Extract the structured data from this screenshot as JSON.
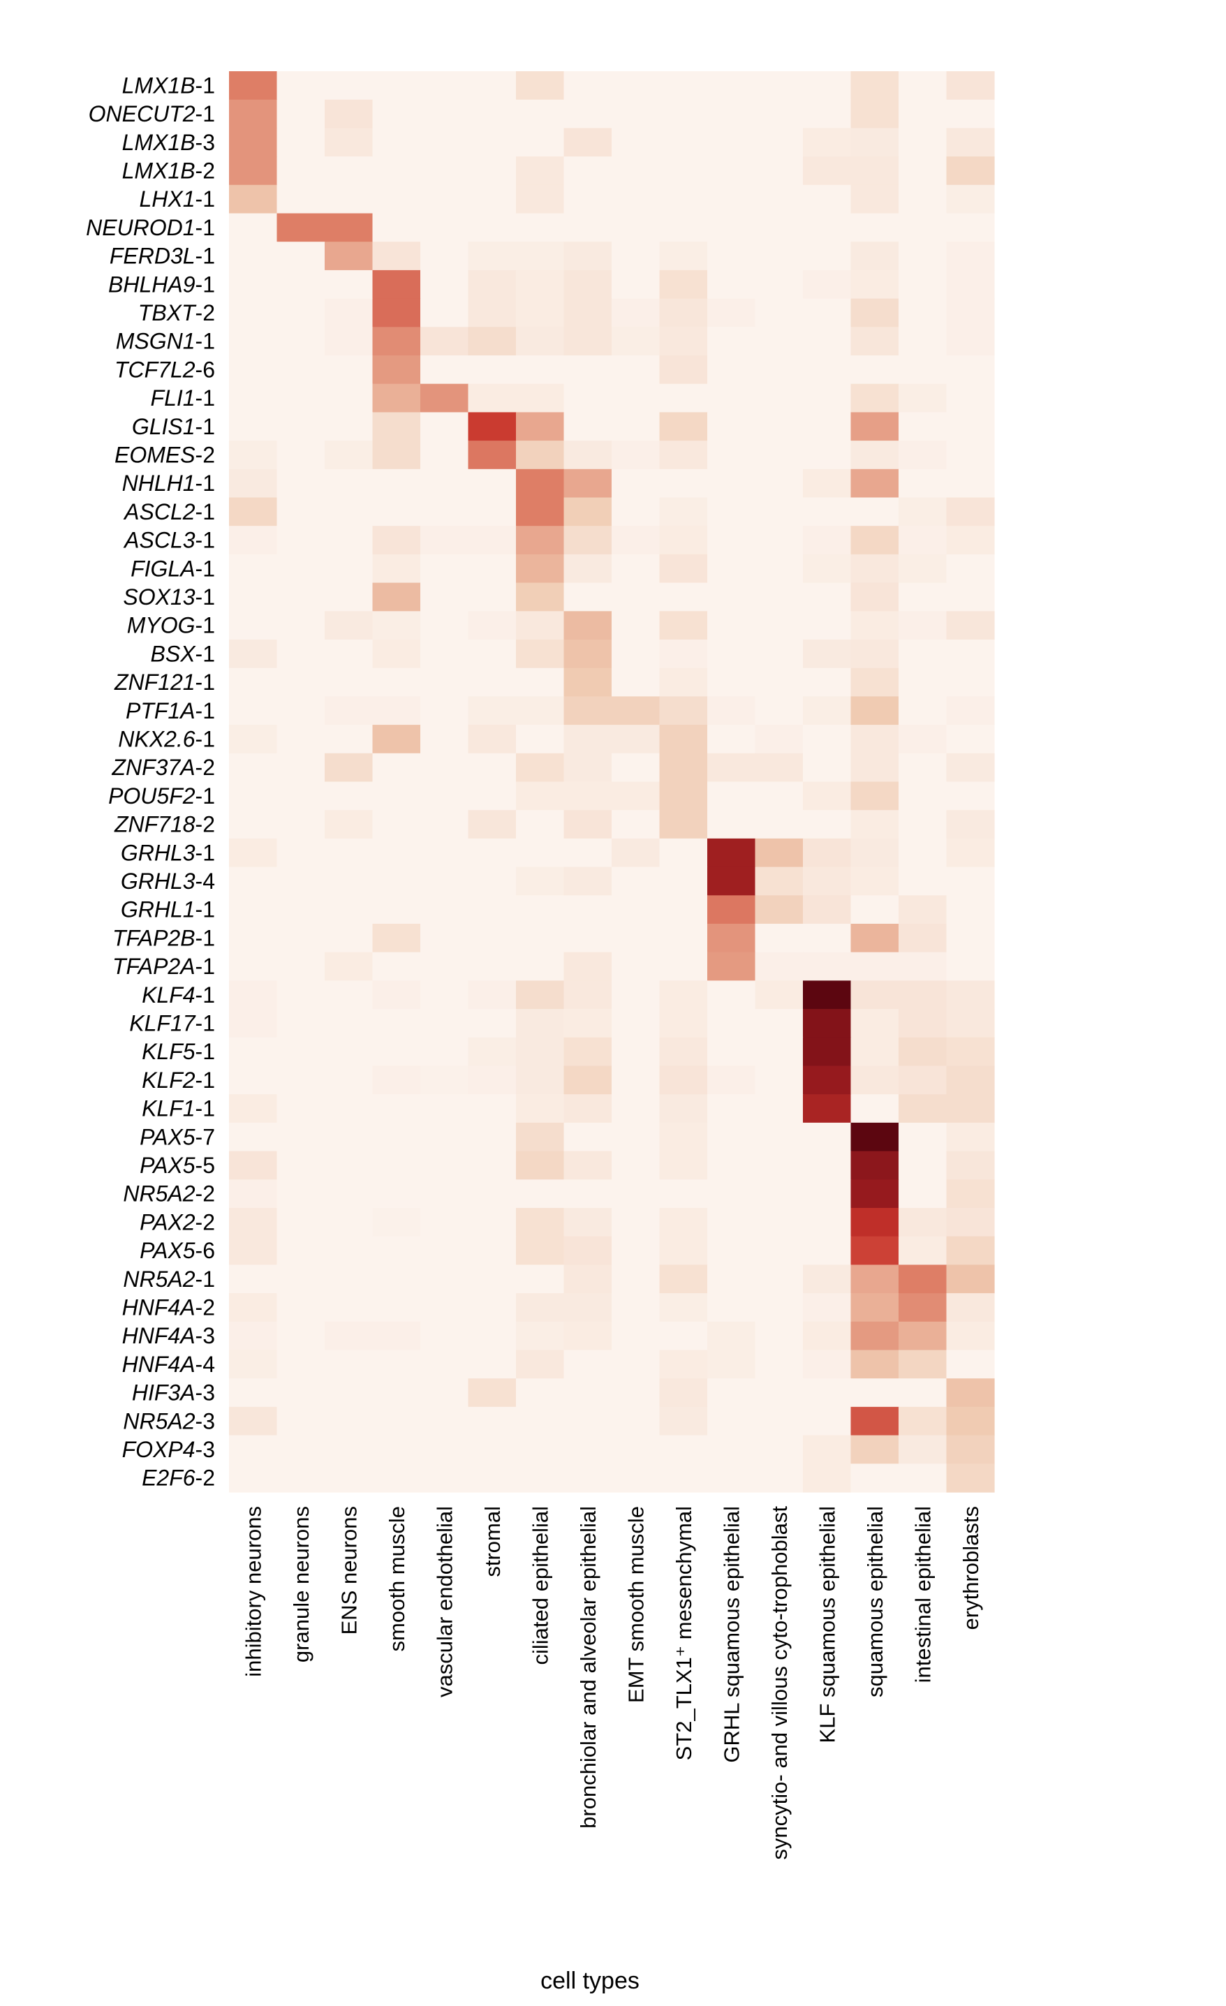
{
  "chart_data": {
    "type": "heatmap",
    "xlabel": "cell types",
    "ylabel": "",
    "columns": [
      "inhibitory neurons",
      "granule neurons",
      "ENS neurons",
      "smooth muscle",
      "vascular endothelial",
      "stromal",
      "ciliated epithelial",
      "bronchiolar and alveolar epithelial",
      "EMT smooth muscle",
      "ST2_TLX1⁺ mesenchymal",
      "GRHL squamous epithelial",
      "syncytio- and villous cyto-trophoblast",
      "KLF squamous epithelial",
      "squamous epithelial",
      "intestinal epithelial",
      "erythroblasts"
    ],
    "rows": [
      {
        "gene": "LMX1B",
        "suffix": "-1",
        "values": [
          0.5,
          0,
          0,
          0,
          0,
          0,
          0.1,
          0,
          0,
          0,
          0,
          0,
          0,
          0.1,
          0,
          0.08
        ]
      },
      {
        "gene": "ONECUT2",
        "suffix": "-1",
        "values": [
          0.42,
          0,
          0.08,
          0,
          0,
          0,
          0,
          0,
          0,
          0,
          0,
          0,
          0,
          0.1,
          0,
          0
        ]
      },
      {
        "gene": "LMX1B",
        "suffix": "-3",
        "values": [
          0.42,
          0,
          0.06,
          0,
          0,
          0,
          0,
          0.08,
          0,
          0,
          0,
          0,
          0.04,
          0.05,
          0,
          0.06
        ]
      },
      {
        "gene": "LMX1B",
        "suffix": "-2",
        "values": [
          0.42,
          0,
          0,
          0,
          0,
          0,
          0.06,
          0,
          0,
          0,
          0,
          0,
          0.06,
          0.06,
          0,
          0.15
        ]
      },
      {
        "gene": "LHX1",
        "suffix": "-1",
        "values": [
          0.25,
          0,
          0,
          0,
          0,
          0,
          0.06,
          0,
          0,
          0,
          0,
          0,
          0,
          0.06,
          0,
          0.03
        ]
      },
      {
        "gene": "NEUROD1",
        "suffix": "-1",
        "values": [
          0,
          0.5,
          0.5,
          0,
          0,
          0,
          0,
          0,
          0,
          0,
          0,
          0,
          0,
          0,
          0,
          0
        ]
      },
      {
        "gene": "FERD3L",
        "suffix": "-1",
        "values": [
          0,
          0,
          0.35,
          0.08,
          0,
          0.03,
          0.03,
          0.05,
          0,
          0.03,
          0,
          0,
          0,
          0.05,
          0,
          0.02
        ]
      },
      {
        "gene": "BHLHA9",
        "suffix": "-1",
        "values": [
          0,
          0,
          0,
          0.55,
          0,
          0.06,
          0.04,
          0.07,
          0,
          0.1,
          0,
          0,
          0.02,
          0.04,
          0,
          0.02
        ]
      },
      {
        "gene": "TBXT",
        "suffix": "-2",
        "values": [
          0,
          0,
          0.02,
          0.55,
          0,
          0.06,
          0.04,
          0.07,
          0.02,
          0.07,
          0.02,
          0,
          0,
          0.12,
          0,
          0.02
        ]
      },
      {
        "gene": "MSGN1",
        "suffix": "-1",
        "values": [
          0,
          0,
          0.02,
          0.45,
          0.08,
          0.12,
          0.05,
          0.07,
          0.03,
          0.06,
          0,
          0,
          0,
          0.07,
          0,
          0.02
        ]
      },
      {
        "gene": "TCF7L2",
        "suffix": "-6",
        "values": [
          0,
          0,
          0,
          0.4,
          0,
          0,
          0,
          0,
          0,
          0.08,
          0,
          0,
          0,
          0,
          0,
          0
        ]
      },
      {
        "gene": "FLI1",
        "suffix": "-1",
        "values": [
          0,
          0,
          0,
          0.32,
          0.42,
          0.04,
          0.04,
          0,
          0,
          0,
          0,
          0,
          0,
          0.1,
          0.03,
          0
        ]
      },
      {
        "gene": "GLIS1",
        "suffix": "-1",
        "values": [
          0,
          0,
          0,
          0.12,
          0,
          0.7,
          0.35,
          0,
          0,
          0.15,
          0,
          0,
          0,
          0.38,
          0,
          0
        ]
      },
      {
        "gene": "EOMES",
        "suffix": "-2",
        "values": [
          0.03,
          0,
          0.03,
          0.12,
          0,
          0.52,
          0.18,
          0.05,
          0.02,
          0.06,
          0,
          0,
          0,
          0.05,
          0.02,
          0
        ]
      },
      {
        "gene": "NHLH1",
        "suffix": "-1",
        "values": [
          0.05,
          0,
          0,
          0,
          0,
          0,
          0.5,
          0.35,
          0,
          0,
          0,
          0,
          0.04,
          0.35,
          0,
          0
        ]
      },
      {
        "gene": "ASCL2",
        "suffix": "-1",
        "values": [
          0.15,
          0,
          0,
          0,
          0,
          0,
          0.5,
          0.2,
          0,
          0.03,
          0,
          0,
          0,
          0,
          0.03,
          0.08
        ]
      },
      {
        "gene": "ASCL3",
        "suffix": "-1",
        "values": [
          0.02,
          0,
          0,
          0.08,
          0.02,
          0.02,
          0.35,
          0.12,
          0.02,
          0.04,
          0,
          0,
          0.02,
          0.15,
          0.02,
          0.04
        ]
      },
      {
        "gene": "FIGLA",
        "suffix": "-1",
        "values": [
          0,
          0,
          0,
          0.04,
          0,
          0,
          0.3,
          0.05,
          0,
          0.08,
          0,
          0,
          0.03,
          0.06,
          0.03,
          0
        ]
      },
      {
        "gene": "SOX13",
        "suffix": "-1",
        "values": [
          0,
          0,
          0,
          0.28,
          0,
          0,
          0.2,
          0,
          0,
          0,
          0,
          0,
          0,
          0.08,
          0,
          0
        ]
      },
      {
        "gene": "MYOG",
        "suffix": "-1",
        "values": [
          0,
          0,
          0.05,
          0.03,
          0,
          0.02,
          0.06,
          0.28,
          0,
          0.1,
          0,
          0,
          0,
          0.04,
          0.02,
          0.07
        ]
      },
      {
        "gene": "BSX",
        "suffix": "-1",
        "values": [
          0.05,
          0,
          0,
          0.04,
          0,
          0,
          0.1,
          0.25,
          0,
          0.02,
          0,
          0,
          0.05,
          0.06,
          0,
          0
        ]
      },
      {
        "gene": "ZNF121",
        "suffix": "-1",
        "values": [
          0,
          0,
          0,
          0,
          0,
          0,
          0,
          0.22,
          0,
          0.04,
          0,
          0,
          0,
          0.1,
          0,
          0
        ]
      },
      {
        "gene": "PTF1A",
        "suffix": "-1",
        "values": [
          0,
          0,
          0.02,
          0.02,
          0,
          0.03,
          0.03,
          0.18,
          0.18,
          0.12,
          0.02,
          0,
          0.03,
          0.22,
          0,
          0.02
        ]
      },
      {
        "gene": "NKX2.6",
        "suffix": "-1",
        "values": [
          0.03,
          0,
          0,
          0.25,
          0,
          0.06,
          0,
          0.05,
          0.05,
          0.18,
          0,
          0.02,
          0,
          0.06,
          0.02,
          0
        ]
      },
      {
        "gene": "ZNF37A",
        "suffix": "-2",
        "values": [
          0,
          0,
          0.12,
          0,
          0,
          0,
          0.1,
          0.05,
          0,
          0.18,
          0.06,
          0.06,
          0,
          0.06,
          0,
          0.05
        ]
      },
      {
        "gene": "POU5F2",
        "suffix": "-1",
        "values": [
          0,
          0,
          0,
          0,
          0,
          0,
          0.04,
          0.04,
          0.04,
          0.18,
          0,
          0,
          0.04,
          0.15,
          0,
          0
        ]
      },
      {
        "gene": "ZNF718",
        "suffix": "-2",
        "values": [
          0,
          0,
          0.04,
          0,
          0,
          0.07,
          0,
          0.08,
          0,
          0.18,
          0,
          0,
          0,
          0.04,
          0,
          0.05
        ]
      },
      {
        "gene": "GRHL3",
        "suffix": "-1",
        "values": [
          0.04,
          0,
          0,
          0,
          0,
          0,
          0,
          0,
          0.05,
          0,
          0.85,
          0.25,
          0.08,
          0.05,
          0,
          0.04
        ]
      },
      {
        "gene": "GRHL3",
        "suffix": "-4",
        "values": [
          0,
          0,
          0,
          0,
          0,
          0,
          0.03,
          0.05,
          0,
          0,
          0.85,
          0.1,
          0.06,
          0.04,
          0,
          0
        ]
      },
      {
        "gene": "GRHL1",
        "suffix": "-1",
        "values": [
          0,
          0,
          0,
          0,
          0,
          0,
          0,
          0,
          0,
          0,
          0.52,
          0.18,
          0.08,
          0,
          0.06,
          0
        ]
      },
      {
        "gene": "TFAP2B",
        "suffix": "-1",
        "values": [
          0,
          0,
          0,
          0.1,
          0,
          0,
          0,
          0,
          0,
          0,
          0.42,
          0,
          0,
          0.3,
          0.08,
          0
        ]
      },
      {
        "gene": "TFAP2A",
        "suffix": "-1",
        "values": [
          0,
          0,
          0.04,
          0,
          0,
          0,
          0,
          0.06,
          0,
          0,
          0.4,
          0.02,
          0.02,
          0.02,
          0.02,
          0
        ]
      },
      {
        "gene": "KLF4",
        "suffix": "-1",
        "values": [
          0.02,
          0,
          0,
          0.02,
          0,
          0.02,
          0.12,
          0.06,
          0,
          0.04,
          0,
          0.04,
          1.0,
          0.08,
          0.08,
          0.06
        ]
      },
      {
        "gene": "KLF17",
        "suffix": "-1",
        "values": [
          0.02,
          0,
          0,
          0,
          0,
          0,
          0.05,
          0.04,
          0,
          0.04,
          0,
          0,
          0.92,
          0.04,
          0.08,
          0.06
        ]
      },
      {
        "gene": "KLF5",
        "suffix": "-1",
        "values": [
          0,
          0,
          0,
          0,
          0,
          0.03,
          0.05,
          0.1,
          0,
          0.06,
          0,
          0,
          0.92,
          0.04,
          0.12,
          0.1
        ]
      },
      {
        "gene": "KLF2",
        "suffix": "-1",
        "values": [
          0,
          0,
          0,
          0.02,
          0.01,
          0.02,
          0.05,
          0.15,
          0,
          0.08,
          0.02,
          0,
          0.88,
          0.06,
          0.08,
          0.12
        ]
      },
      {
        "gene": "KLF1",
        "suffix": "-1",
        "values": [
          0.04,
          0,
          0,
          0,
          0,
          0,
          0.04,
          0.06,
          0,
          0.05,
          0,
          0,
          0.82,
          0,
          0.12,
          0.12
        ]
      },
      {
        "gene": "PAX5",
        "suffix": "-7",
        "values": [
          0,
          0,
          0,
          0,
          0,
          0,
          0.12,
          0,
          0,
          0.04,
          0,
          0,
          0,
          1.0,
          0,
          0.04
        ]
      },
      {
        "gene": "PAX5",
        "suffix": "-5",
        "values": [
          0.08,
          0,
          0,
          0,
          0,
          0,
          0.15,
          0.06,
          0,
          0.04,
          0,
          0,
          0,
          0.9,
          0,
          0.07
        ]
      },
      {
        "gene": "NR5A2",
        "suffix": "-2",
        "values": [
          0.02,
          0,
          0,
          0,
          0,
          0,
          0,
          0,
          0,
          0,
          0,
          0,
          0,
          0.88,
          0,
          0.1
        ]
      },
      {
        "gene": "PAX2",
        "suffix": "-2",
        "values": [
          0.06,
          0,
          0,
          0.01,
          0,
          0,
          0.1,
          0.05,
          0,
          0.04,
          0,
          0,
          0,
          0.75,
          0.06,
          0.08
        ]
      },
      {
        "gene": "PAX5",
        "suffix": "-6",
        "values": [
          0.06,
          0,
          0,
          0,
          0,
          0,
          0.1,
          0.08,
          0,
          0.04,
          0,
          0,
          0,
          0.68,
          0.04,
          0.15
        ]
      },
      {
        "gene": "NR5A2",
        "suffix": "-1",
        "values": [
          0,
          0,
          0,
          0,
          0,
          0,
          0,
          0.06,
          0,
          0.1,
          0,
          0,
          0.05,
          0.35,
          0.5,
          0.25
        ]
      },
      {
        "gene": "HNF4A",
        "suffix": "-2",
        "values": [
          0.04,
          0,
          0,
          0,
          0,
          0,
          0.05,
          0.05,
          0,
          0.03,
          0,
          0,
          0.02,
          0.32,
          0.45,
          0.06
        ]
      },
      {
        "gene": "HNF4A",
        "suffix": "-3",
        "values": [
          0.02,
          0,
          0.02,
          0.02,
          0,
          0,
          0.03,
          0.04,
          0,
          0,
          0.03,
          0,
          0.04,
          0.4,
          0.32,
          0.04
        ]
      },
      {
        "gene": "HNF4A",
        "suffix": "-4",
        "values": [
          0.03,
          0,
          0,
          0,
          0,
          0,
          0.06,
          0,
          0,
          0.04,
          0.03,
          0,
          0.02,
          0.25,
          0.16,
          0
        ]
      },
      {
        "gene": "HIF3A",
        "suffix": "-3",
        "values": [
          0,
          0,
          0,
          0,
          0,
          0.1,
          0,
          0,
          0,
          0.06,
          0,
          0,
          0,
          0,
          0,
          0.25
        ]
      },
      {
        "gene": "NR5A2",
        "suffix": "-3",
        "values": [
          0.07,
          0,
          0,
          0,
          0,
          0,
          0,
          0,
          0,
          0.05,
          0,
          0,
          0,
          0.62,
          0.1,
          0.22
        ]
      },
      {
        "gene": "FOXP4",
        "suffix": "-3",
        "values": [
          0,
          0,
          0,
          0,
          0,
          0,
          0,
          0,
          0,
          0,
          0,
          0,
          0.04,
          0.18,
          0.05,
          0.18
        ]
      },
      {
        "gene": "E2F6",
        "suffix": "-2",
        "values": [
          0,
          0,
          0,
          0,
          0,
          0,
          0,
          0,
          0,
          0,
          0,
          0,
          0.04,
          0,
          0,
          0.15
        ]
      }
    ],
    "value_range": [
      0,
      1
    ],
    "colormap": [
      "#fcf3ed",
      "#f0cbb2",
      "#de7e66",
      "#c8342b",
      "#961a1e",
      "#5c0610"
    ],
    "grid": false,
    "legend": "none"
  }
}
